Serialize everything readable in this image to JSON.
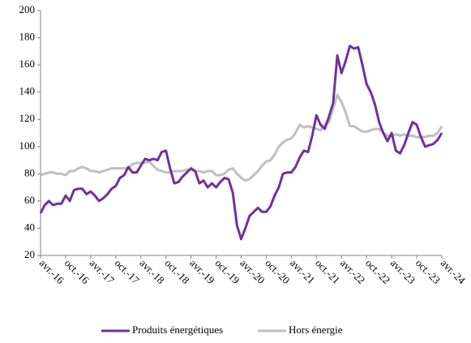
{
  "chart_data": {
    "type": "line",
    "categories": [
      "avr.-16",
      null,
      null,
      null,
      null,
      null,
      "oct.-16",
      null,
      null,
      null,
      null,
      null,
      "avr.-17",
      null,
      null,
      null,
      null,
      null,
      "oct.-17",
      null,
      null,
      null,
      null,
      null,
      "avr.-18",
      null,
      null,
      null,
      null,
      null,
      "oct.-18",
      null,
      null,
      null,
      null,
      null,
      "avr.-19",
      null,
      null,
      null,
      null,
      null,
      "oct.-19",
      null,
      null,
      null,
      null,
      null,
      "avr.-20",
      null,
      null,
      null,
      null,
      null,
      "oct.-20",
      null,
      null,
      null,
      null,
      null,
      "avr.-21",
      null,
      null,
      null,
      null,
      null,
      "oct.-21",
      null,
      null,
      null,
      null,
      null,
      "avr.-22",
      null,
      null,
      null,
      null,
      null,
      "oct.-22",
      null,
      null,
      null,
      null,
      null,
      "avr.-23",
      null,
      null,
      null,
      null,
      null,
      "oct.-23",
      null,
      null,
      null,
      null,
      null,
      "avr.-24"
    ],
    "series": [
      {
        "name": "Produits énergétiques",
        "color": "#7030a0",
        "values": [
          51,
          57,
          60,
          57,
          58,
          58,
          64,
          60,
          68,
          69,
          69,
          65,
          67,
          64,
          60,
          62,
          65,
          69,
          71,
          77,
          79,
          85,
          81,
          81,
          86,
          91,
          90,
          91,
          90,
          96,
          97,
          84,
          73,
          74,
          78,
          81,
          84,
          82,
          73,
          75,
          70,
          73,
          70,
          74,
          77,
          76,
          66,
          42,
          32,
          40,
          49,
          52,
          55,
          52,
          52,
          56,
          64,
          70,
          80,
          81,
          81,
          85,
          92,
          97,
          96,
          108,
          123,
          116,
          113,
          122,
          132,
          167,
          154,
          163,
          174,
          172,
          173,
          160,
          146,
          140,
          131,
          118,
          110,
          104,
          110,
          97,
          95,
          101,
          110,
          118,
          116,
          107,
          100,
          101,
          102,
          105,
          110
        ]
      },
      {
        "name": "Hors énergie",
        "color": "#bfbfbf",
        "values": [
          79,
          80,
          81,
          81,
          80,
          80,
          79,
          82,
          82,
          84,
          85,
          84,
          82,
          82,
          81,
          82,
          83,
          84,
          84,
          84,
          84,
          84,
          87,
          88,
          88,
          88,
          89,
          86,
          83,
          82,
          81,
          81,
          82,
          82,
          82,
          83,
          83,
          82,
          82,
          81,
          82,
          82,
          79,
          79,
          80,
          83,
          84,
          80,
          77,
          75,
          76,
          79,
          82,
          86,
          89,
          90,
          94,
          100,
          103,
          105,
          106,
          110,
          116,
          114,
          115,
          114,
          113,
          112,
          116,
          118,
          128,
          138,
          133,
          125,
          115,
          115,
          113,
          111,
          111,
          112,
          113,
          113,
          110,
          108,
          108,
          109,
          108,
          109,
          108,
          108,
          107,
          107,
          107,
          108,
          108,
          110,
          115
        ]
      }
    ],
    "ylim": [
      20,
      200
    ],
    "yticks": [
      20,
      40,
      60,
      80,
      100,
      120,
      140,
      160,
      180,
      200
    ],
    "grid": false,
    "legend": "bottom"
  }
}
